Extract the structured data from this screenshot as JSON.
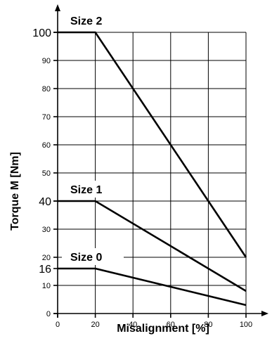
{
  "chart_data": {
    "type": "line",
    "xlabel": "Misalignment [%]",
    "ylabel": "Torque M [Nm]",
    "xlim": [
      0,
      100
    ],
    "ylim": [
      0,
      100
    ],
    "x_ticks": [
      "0",
      "20",
      "40",
      "60",
      "80",
      "100"
    ],
    "y_ticks": [
      "0",
      "10",
      "20",
      "30",
      "40",
      "50",
      "60",
      "70",
      "80",
      "90",
      "100"
    ],
    "y_highlight_ticks": [
      "16",
      "40",
      "100"
    ],
    "grid": true,
    "series": [
      {
        "name": "Size 2",
        "x": [
          0,
          20,
          100
        ],
        "y": [
          100,
          100,
          20
        ]
      },
      {
        "name": "Size 1",
        "x": [
          0,
          20,
          100
        ],
        "y": [
          40,
          40,
          8
        ]
      },
      {
        "name": "Size 0",
        "x": [
          0,
          20,
          100
        ],
        "y": [
          16,
          16,
          3
        ]
      }
    ]
  }
}
